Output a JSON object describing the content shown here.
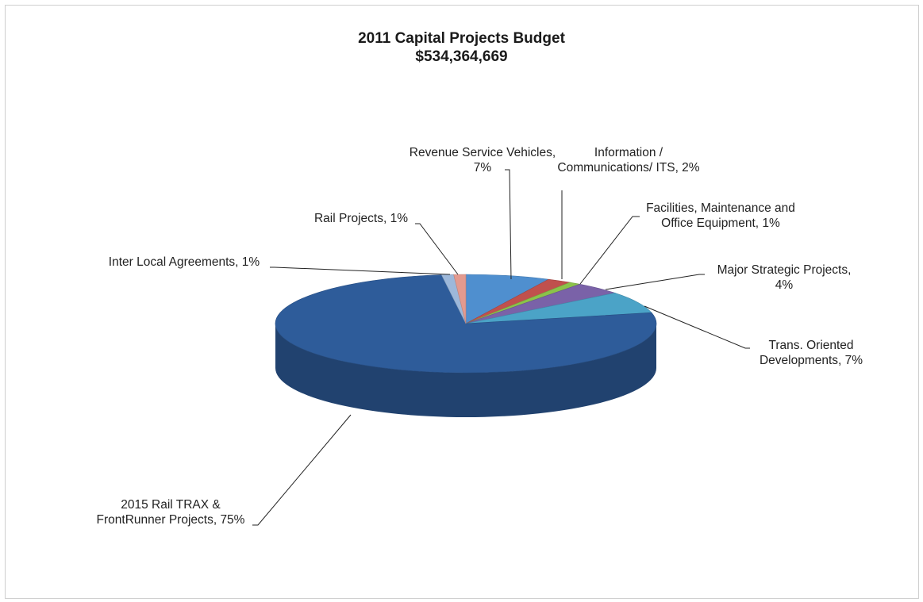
{
  "chart_data": {
    "type": "pie",
    "title": "2011 Capital Projects Budget",
    "subtitle": "$534,364,669",
    "slices": [
      {
        "label": "Revenue Service Vehicles, 7%",
        "value": 7,
        "color": "#4f8fcf"
      },
      {
        "label": "Information / Communications/ ITS, 2%",
        "value": 2,
        "color": "#c0504d"
      },
      {
        "label": "Facilities, Maintenance and Office Equipment, 1%",
        "value": 1,
        "color": "#8bc34a"
      },
      {
        "label": "Major Strategic Projects, 4%",
        "value": 4,
        "color": "#7a62a8"
      },
      {
        "label": "Trans. Oriented Developments, 7%",
        "value": 7,
        "color": "#4ba3c7"
      },
      {
        "label": "2015 Rail TRAX & FrontRunner Projects, 75%",
        "value": 75,
        "color": "#2e5c9a"
      },
      {
        "label": "Inter Local Agreements, 1%",
        "value": 1,
        "color": "#9db8da"
      },
      {
        "label": "Rail Projects, 1%",
        "value": 1,
        "color": "#e39a8f"
      }
    ],
    "legend": "none",
    "style": "3d-pie"
  }
}
